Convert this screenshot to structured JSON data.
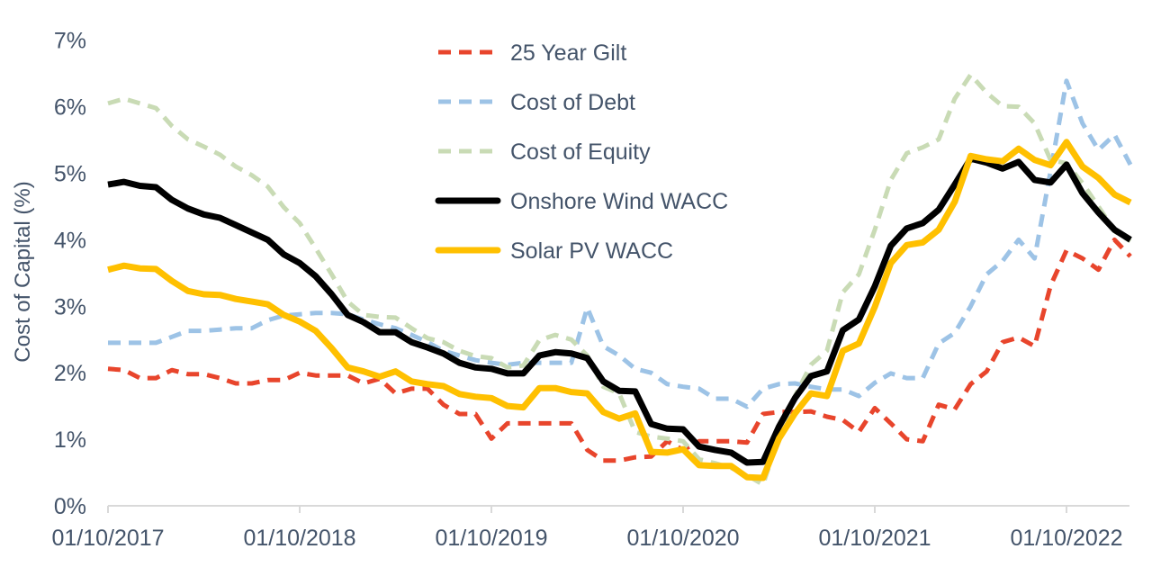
{
  "chart_data": {
    "type": "line",
    "title": "",
    "xlabel": "",
    "ylabel": "Cost of Capital (%)",
    "ylim": [
      0,
      7
    ],
    "y_ticks": [
      "0%",
      "1%",
      "2%",
      "3%",
      "4%",
      "5%",
      "6%",
      "7%"
    ],
    "x_ticks": [
      "01/10/2017",
      "01/10/2018",
      "01/10/2019",
      "01/10/2020",
      "01/10/2021",
      "01/10/2022"
    ],
    "grid": false,
    "legend_position": "top-center",
    "x": [
      "2017-10",
      "2017-11",
      "2017-12",
      "2018-01",
      "2018-02",
      "2018-03",
      "2018-04",
      "2018-05",
      "2018-06",
      "2018-07",
      "2018-08",
      "2018-09",
      "2018-10",
      "2018-11",
      "2018-12",
      "2019-01",
      "2019-02",
      "2019-03",
      "2019-04",
      "2019-05",
      "2019-06",
      "2019-07",
      "2019-08",
      "2019-09",
      "2019-10",
      "2019-11",
      "2019-12",
      "2020-01",
      "2020-02",
      "2020-03",
      "2020-04",
      "2020-05",
      "2020-06",
      "2020-07",
      "2020-08",
      "2020-09",
      "2020-10",
      "2020-11",
      "2020-12",
      "2021-01",
      "2021-02",
      "2021-03",
      "2021-04",
      "2021-05",
      "2021-06",
      "2021-07",
      "2021-08",
      "2021-09",
      "2021-10",
      "2021-11",
      "2021-12",
      "2022-01",
      "2022-02",
      "2022-03",
      "2022-04",
      "2022-05",
      "2022-06",
      "2022-07",
      "2022-08",
      "2022-09",
      "2022-10",
      "2022-11",
      "2022-12",
      "2023-01",
      "2023-02"
    ],
    "series": [
      {
        "name": "25 Year Gilt",
        "color": "#E8452C",
        "style": "dashed",
        "values": [
          2.06,
          2.04,
          1.92,
          1.92,
          2.04,
          1.98,
          1.98,
          1.92,
          1.84,
          1.84,
          1.89,
          1.89,
          2.0,
          1.96,
          1.96,
          1.96,
          1.84,
          1.91,
          1.69,
          1.76,
          1.76,
          1.52,
          1.38,
          1.38,
          1.01,
          1.24,
          1.24,
          1.24,
          1.24,
          1.24,
          0.84,
          0.68,
          0.68,
          0.73,
          0.74,
          0.97,
          0.84,
          0.97,
          0.97,
          0.97,
          0.95,
          1.38,
          1.41,
          1.41,
          1.42,
          1.34,
          1.29,
          1.11,
          1.47,
          1.24,
          1.0,
          0.97,
          1.52,
          1.45,
          1.83,
          2.02,
          2.46,
          2.53,
          2.4,
          3.31,
          3.84,
          3.72,
          3.55,
          4.0,
          3.75
        ]
      },
      {
        "name": "Cost of Debt",
        "color": "#9DC3E6",
        "style": "dashed",
        "values": [
          2.45,
          2.45,
          2.45,
          2.45,
          2.54,
          2.63,
          2.63,
          2.65,
          2.67,
          2.67,
          2.79,
          2.86,
          2.88,
          2.9,
          2.9,
          2.88,
          2.8,
          2.73,
          2.67,
          2.57,
          2.46,
          2.33,
          2.26,
          2.19,
          2.15,
          2.12,
          2.15,
          2.15,
          2.15,
          2.15,
          2.98,
          2.4,
          2.26,
          2.06,
          2.0,
          1.83,
          1.79,
          1.76,
          1.61,
          1.61,
          1.49,
          1.76,
          1.83,
          1.84,
          1.79,
          1.75,
          1.75,
          1.65,
          1.85,
          1.99,
          1.92,
          1.92,
          2.44,
          2.6,
          3.0,
          3.48,
          3.68,
          4.0,
          3.72,
          5.03,
          6.39,
          5.75,
          5.35,
          5.58,
          5.13
        ]
      },
      {
        "name": "Cost of Equity",
        "color": "#C9DBB5",
        "style": "dashed",
        "values": [
          6.05,
          6.12,
          6.05,
          5.98,
          5.71,
          5.51,
          5.4,
          5.28,
          5.1,
          4.97,
          4.8,
          4.49,
          4.25,
          3.87,
          3.48,
          3.07,
          2.87,
          2.84,
          2.83,
          2.67,
          2.52,
          2.46,
          2.33,
          2.25,
          2.22,
          2.08,
          2.11,
          2.49,
          2.57,
          2.5,
          2.26,
          1.79,
          1.69,
          1.11,
          1.04,
          1.01,
          0.97,
          0.7,
          0.64,
          0.57,
          0.46,
          0.32,
          1.04,
          1.65,
          2.12,
          2.33,
          3.21,
          3.48,
          4.15,
          4.9,
          5.3,
          5.39,
          5.51,
          6.12,
          6.48,
          6.21,
          6.01,
          6.0,
          5.75,
          5.2,
          5.15,
          4.85,
          4.5,
          4.13,
          3.98
        ]
      },
      {
        "name": "Onshore Wind WACC",
        "color": "#000000",
        "style": "solid",
        "values": [
          4.83,
          4.87,
          4.81,
          4.79,
          4.6,
          4.47,
          4.38,
          4.33,
          4.22,
          4.11,
          4.0,
          3.78,
          3.65,
          3.45,
          3.18,
          2.87,
          2.76,
          2.61,
          2.61,
          2.46,
          2.38,
          2.29,
          2.15,
          2.08,
          2.06,
          1.99,
          1.99,
          2.26,
          2.31,
          2.29,
          2.22,
          1.87,
          1.73,
          1.72,
          1.23,
          1.16,
          1.15,
          0.89,
          0.84,
          0.8,
          0.65,
          0.66,
          1.19,
          1.62,
          1.95,
          2.02,
          2.64,
          2.8,
          3.3,
          3.91,
          4.17,
          4.25,
          4.45,
          4.83,
          5.22,
          5.16,
          5.07,
          5.17,
          4.9,
          4.86,
          5.13,
          4.7,
          4.41,
          4.15,
          4.0
        ]
      },
      {
        "name": "Solar PV WACC",
        "color": "#FFC000",
        "style": "solid",
        "values": [
          3.55,
          3.61,
          3.57,
          3.56,
          3.38,
          3.23,
          3.18,
          3.17,
          3.11,
          3.07,
          3.03,
          2.87,
          2.77,
          2.63,
          2.37,
          2.08,
          2.02,
          1.94,
          2.02,
          1.87,
          1.83,
          1.8,
          1.68,
          1.64,
          1.62,
          1.5,
          1.48,
          1.77,
          1.77,
          1.71,
          1.69,
          1.41,
          1.31,
          1.39,
          0.81,
          0.8,
          0.85,
          0.61,
          0.6,
          0.6,
          0.43,
          0.42,
          1.01,
          1.39,
          1.69,
          1.65,
          2.33,
          2.44,
          2.99,
          3.65,
          3.92,
          3.96,
          4.15,
          4.57,
          5.26,
          5.21,
          5.18,
          5.37,
          5.2,
          5.12,
          5.47,
          5.1,
          4.93,
          4.68,
          4.56
        ]
      }
    ]
  }
}
